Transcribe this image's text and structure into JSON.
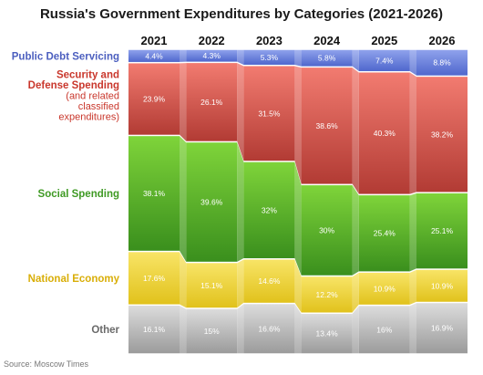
{
  "title": "Russia's Government Expenditures by Categories (2021-2026)",
  "source": "Source: Moscow Times",
  "chart_data": {
    "type": "bar",
    "stacked": true,
    "normalized": true,
    "unit": "%",
    "categories": [
      "2021",
      "2022",
      "2023",
      "2024",
      "2025",
      "2026"
    ],
    "series": [
      {
        "name": "Public Debt Servicing",
        "name_lines": [
          "Public Debt Servicing"
        ],
        "color_light": "#8fa2ec",
        "color_dark": "#4f67cd",
        "label_color": "#4c5fbf",
        "values": [
          4.4,
          4.3,
          5.3,
          5.8,
          7.4,
          8.8
        ],
        "labels": [
          "4.4%",
          "4.3%",
          "5.3%",
          "5.8%",
          "7.4%",
          "8.8%"
        ]
      },
      {
        "name": "Security and Defense Spending",
        "name_lines": [
          "Security and",
          "Defense Spending"
        ],
        "sub_lines": [
          "(and related",
          "classified",
          "expenditures)"
        ],
        "color_light": "#f27b70",
        "color_dark": "#b23b34",
        "label_color": "#c9372c",
        "values": [
          23.9,
          26.1,
          31.5,
          38.6,
          40.3,
          38.2
        ],
        "labels": [
          "23.9%",
          "26.1%",
          "31.5%",
          "38.6%",
          "40.3%",
          "38.2%"
        ]
      },
      {
        "name": "Social Spending",
        "name_lines": [
          "Social Spending"
        ],
        "color_light": "#7fd43a",
        "color_dark": "#3a8f1d",
        "label_color": "#3f9a24",
        "values": [
          38.1,
          39.6,
          32,
          30,
          25.4,
          25.1
        ],
        "labels": [
          "38.1%",
          "39.6%",
          "32%",
          "30%",
          "25.4%",
          "25.1%"
        ]
      },
      {
        "name": "National Economy",
        "name_lines": [
          "National Economy"
        ],
        "color_light": "#f8e466",
        "color_dark": "#e1c21c",
        "label_color": "#d9ae08",
        "values": [
          17.6,
          15.1,
          14.6,
          12.2,
          10.9,
          10.9
        ],
        "labels": [
          "17.6%",
          "15.1%",
          "14.6%",
          "12.2%",
          "10.9%",
          "10.9%"
        ]
      },
      {
        "name": "Other",
        "name_lines": [
          "Other"
        ],
        "color_light": "#dcdcdc",
        "color_dark": "#9b9b9b",
        "label_color": "#6a6a6a",
        "values": [
          16.1,
          15,
          16.6,
          13.4,
          16,
          16.9
        ],
        "labels": [
          "16.1%",
          "15%",
          "16.6%",
          "13.4%",
          "16%",
          "16.9%"
        ]
      }
    ]
  }
}
